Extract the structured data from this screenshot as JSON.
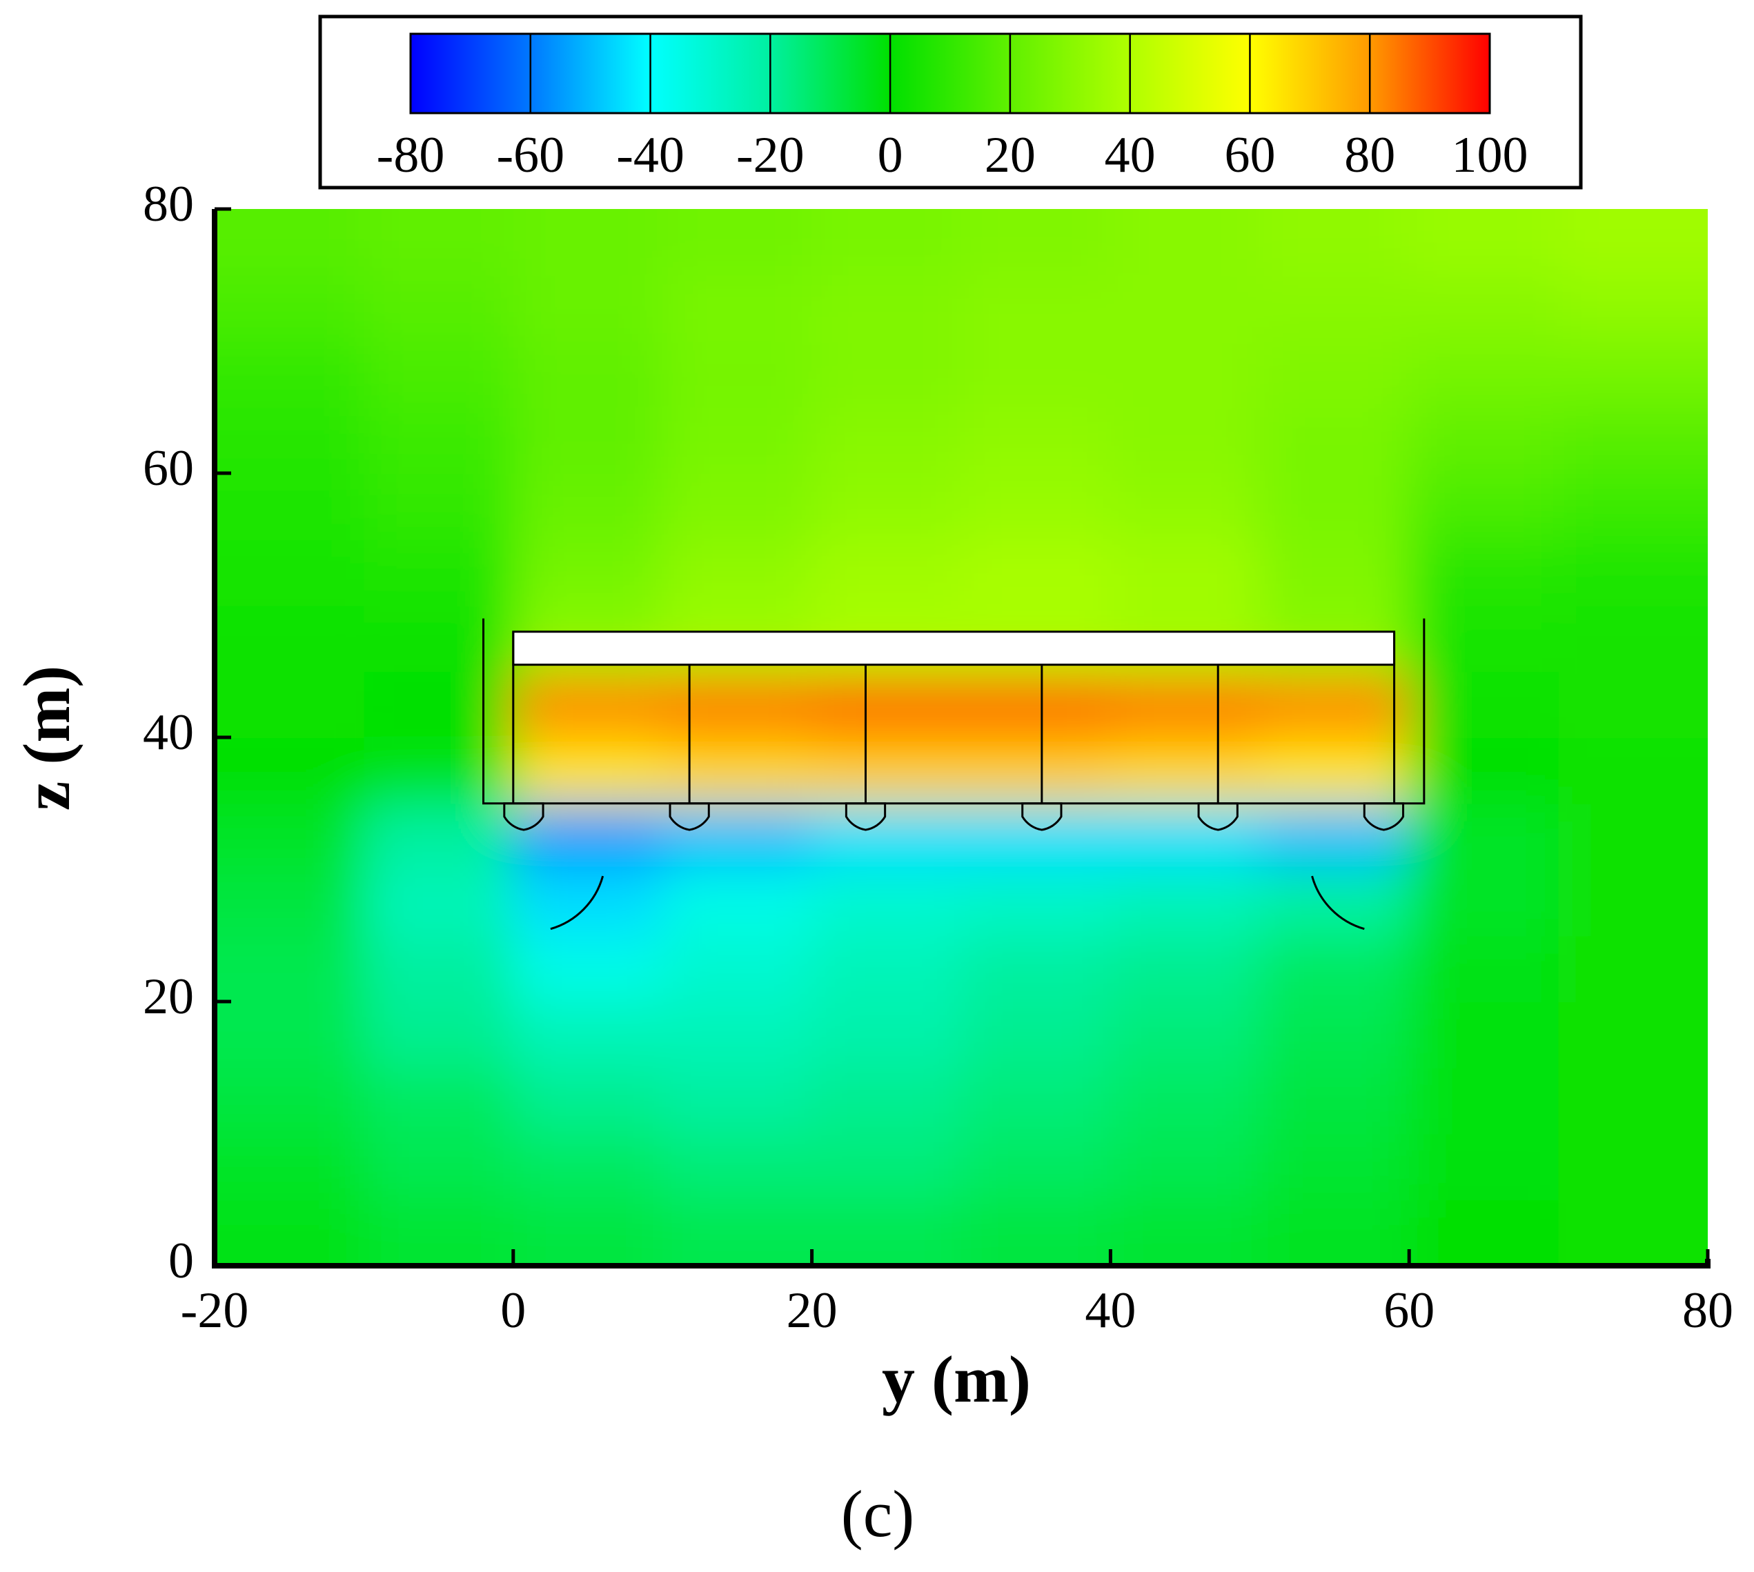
{
  "chart_data": {
    "type": "contour",
    "x_label": "y (m)",
    "y_label": "z (m)",
    "caption": "(c)",
    "xlim": [
      -20,
      80
    ],
    "xticks": [
      -20,
      0,
      20,
      40,
      60,
      80
    ],
    "ylim": [
      0,
      80
    ],
    "yticks": [
      0,
      20,
      40,
      60,
      80
    ],
    "colorbar": {
      "lim": [
        -80,
        100
      ],
      "ticks": [
        -80,
        -60,
        -40,
        -20,
        0,
        20,
        40,
        60,
        80,
        100
      ],
      "colors": [
        "#0000ff",
        "#0078ff",
        "#00ffff",
        "#00f0a0",
        "#00e000",
        "#60f000",
        "#b0ff00",
        "#ffff00",
        "#ff9a00",
        "#ff0000"
      ]
    },
    "x": [
      -15,
      -5,
      5,
      15,
      25,
      35,
      45,
      55,
      65,
      75
    ],
    "y": [
      2.5,
      7.5,
      12.5,
      17.5,
      22.5,
      27.5,
      32.5,
      37.5,
      42.5,
      47.5,
      52.5,
      57.5,
      62.5,
      67.5,
      72.5,
      77.5
    ],
    "values": [
      [
        -3,
        -6,
        -8,
        -10,
        -10,
        -8,
        -6,
        -4,
        0,
        2
      ],
      [
        -5,
        -10,
        -12,
        -15,
        -15,
        -12,
        -10,
        -6,
        -1,
        2
      ],
      [
        -8,
        -12,
        -18,
        -20,
        -18,
        -15,
        -12,
        -8,
        -2,
        2
      ],
      [
        -10,
        -18,
        -25,
        -25,
        -22,
        -18,
        -15,
        -10,
        -2,
        2
      ],
      [
        -10,
        -20,
        -35,
        -30,
        -25,
        -20,
        -18,
        -12,
        -3,
        2
      ],
      [
        -8,
        -25,
        -45,
        -35,
        -30,
        -28,
        -25,
        -20,
        -5,
        2
      ],
      [
        -5,
        -20,
        -55,
        -50,
        -45,
        -45,
        -45,
        -50,
        -5,
        2
      ],
      [
        0,
        -2,
        65,
        68,
        70,
        70,
        68,
        65,
        0,
        3
      ],
      [
        2,
        0,
        82,
        84,
        86,
        86,
        84,
        82,
        2,
        4
      ],
      [
        3,
        2,
        30,
        35,
        38,
        38,
        36,
        30,
        5,
        4
      ],
      [
        5,
        6,
        25,
        32,
        36,
        38,
        36,
        28,
        8,
        6
      ],
      [
        6,
        10,
        22,
        28,
        32,
        34,
        32,
        26,
        15,
        12
      ],
      [
        8,
        12,
        20,
        26,
        30,
        32,
        30,
        26,
        20,
        18
      ],
      [
        10,
        15,
        20,
        25,
        28,
        30,
        30,
        28,
        25,
        25
      ],
      [
        15,
        18,
        22,
        26,
        28,
        30,
        30,
        30,
        30,
        32
      ],
      [
        18,
        20,
        22,
        24,
        26,
        28,
        30,
        32,
        34,
        36
      ]
    ]
  }
}
